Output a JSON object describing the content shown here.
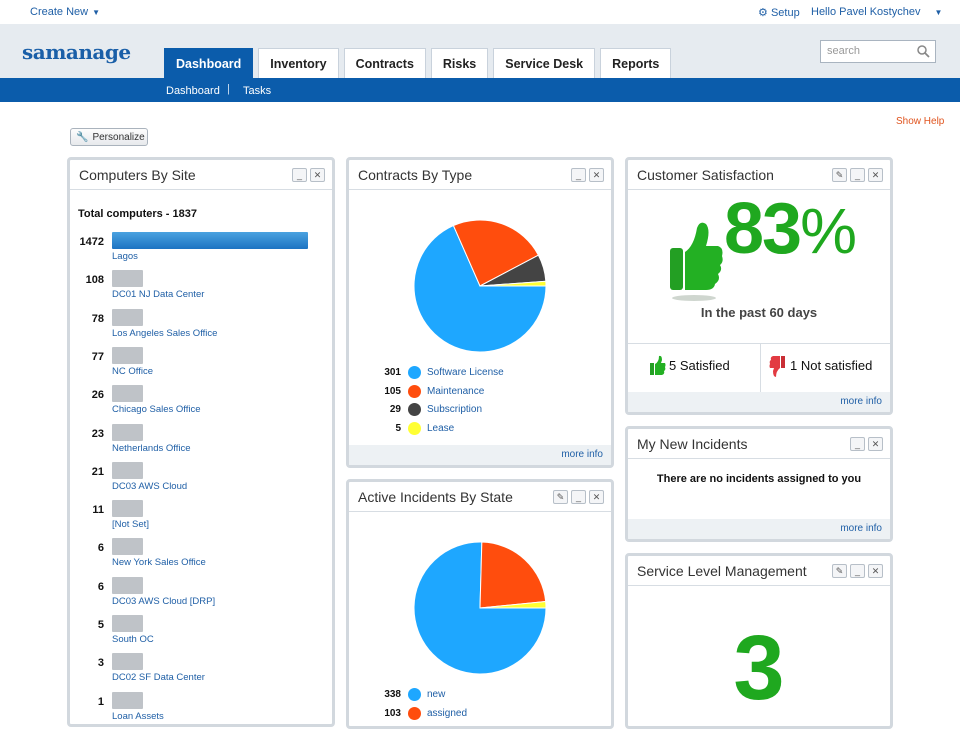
{
  "topbar": {
    "create_new": "Create New",
    "setup": "Setup",
    "user": "Hello Pavel Kostychev"
  },
  "header": {
    "logo": "samanage",
    "tabs": [
      "Dashboard",
      "Inventory",
      "Contracts",
      "Risks",
      "Service Desk",
      "Reports"
    ],
    "active_tab": "Dashboard",
    "search_placeholder": "search"
  },
  "subnav": {
    "items": [
      "Dashboard",
      "Tasks"
    ],
    "separator": "|"
  },
  "page": {
    "show_help": "Show Help",
    "personalize": "Personalize"
  },
  "computers": {
    "title": "Computers By Site",
    "total_label": "Total computers - 1837",
    "sites": [
      {
        "count": "1472",
        "name": "Lagos",
        "fraction": 1.0
      },
      {
        "count": "108",
        "name": "DC01 NJ Data Center",
        "fraction": 0.2
      },
      {
        "count": "78",
        "name": "Los Angeles Sales Office",
        "fraction": 0.2
      },
      {
        "count": "77",
        "name": "NC Office",
        "fraction": 0.2
      },
      {
        "count": "26",
        "name": "Chicago Sales Office",
        "fraction": 0.2
      },
      {
        "count": "23",
        "name": "Netherlands Office",
        "fraction": 0.2
      },
      {
        "count": "21",
        "name": "DC03 AWS Cloud",
        "fraction": 0.2
      },
      {
        "count": "11",
        "name": "[Not Set]",
        "fraction": 0.2
      },
      {
        "count": "6",
        "name": "New York Sales Office",
        "fraction": 0.2
      },
      {
        "count": "6",
        "name": "DC03 AWS Cloud [DRP]",
        "fraction": 0.2
      },
      {
        "count": "5",
        "name": "South OC",
        "fraction": 0.2
      },
      {
        "count": "3",
        "name": "DC02 SF Data Center",
        "fraction": 0.2
      },
      {
        "count": "1",
        "name": "Loan Assets",
        "fraction": 0.2
      }
    ]
  },
  "contracts": {
    "title": "Contracts By Type",
    "more_info": "more info",
    "items": [
      {
        "value": 301,
        "label": "Software License",
        "color": "#1ea7ff"
      },
      {
        "value": 105,
        "label": "Maintenance",
        "color": "#ff4d0d"
      },
      {
        "value": 29,
        "label": "Subscription",
        "color": "#444444"
      },
      {
        "value": 5,
        "label": "Lease",
        "color": "#ffff33"
      }
    ]
  },
  "incidents": {
    "title": "Active Incidents By State",
    "items": [
      {
        "value": 338,
        "label": "new",
        "color": "#1ea7ff"
      },
      {
        "value": 103,
        "label": "assigned",
        "color": "#ff4d0d"
      },
      {
        "value": 7,
        "label": "",
        "color": "#ffff33"
      }
    ]
  },
  "satisfaction": {
    "title": "Customer Satisfaction",
    "percent": "83",
    "percent_sign": "%",
    "period": "In the past 60 days",
    "satisfied": "5 Satisfied",
    "not_satisfied": "1 Not satisfied",
    "more_info": "more info",
    "accent": "#1fa81f"
  },
  "new_incidents": {
    "title": "My New Incidents",
    "message": "There are no incidents assigned to you",
    "more_info": "more info"
  },
  "slm": {
    "title": "Service Level Management",
    "value": "3"
  }
}
